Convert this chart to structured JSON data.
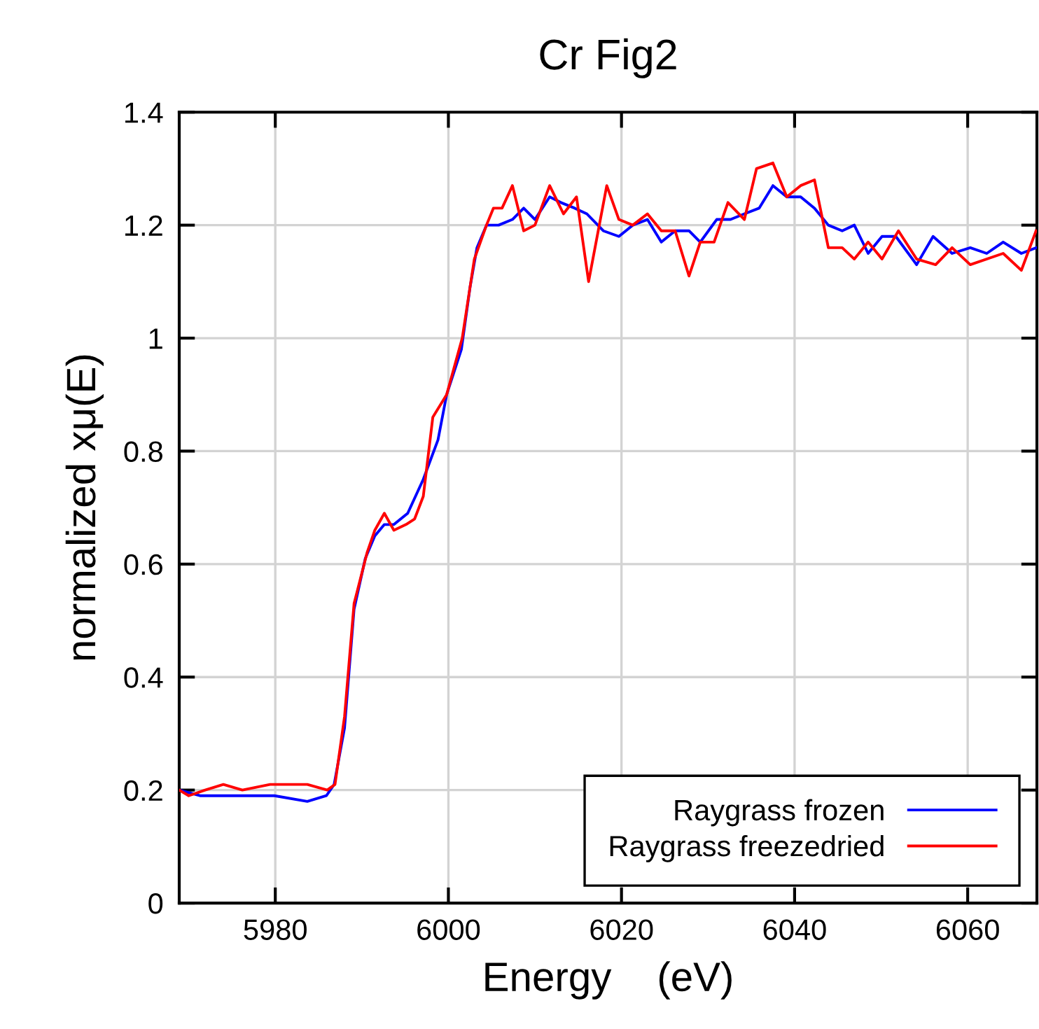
{
  "chart_data": {
    "type": "line",
    "title": "Cr Fig2",
    "xlabel": "Energy    (eV)",
    "ylabel": "normalized xμ(E)",
    "xlim": [
      5968.9,
      6068
    ],
    "xticks": [
      5980,
      6000,
      6020,
      6040,
      6060
    ],
    "ylim": [
      0,
      1.4
    ],
    "yticks": [
      0,
      {
        "value": 0.2,
        "label": "0.2"
      },
      {
        "value": 0.4,
        "label": "0.4"
      },
      {
        "value": 0.6,
        "label": "0.6"
      },
      {
        "value": 0.8,
        "label": "0.8"
      },
      1,
      {
        "value": 1.2,
        "label": "1.2"
      },
      {
        "value": 1.4,
        "label": "1.4"
      }
    ],
    "grid": true,
    "legend": "bottom right",
    "line_style": "solid",
    "series": [
      {
        "name": "Raygrass frozen",
        "color": "#0000ff",
        "x": [
          5968.9,
          5971.3,
          5974.0,
          5977.3,
          5979.9,
          5983.7,
          5985.9,
          5986.8,
          5988.0,
          5989.1,
          5990.4,
          5991.5,
          5992.6,
          5993.7,
          5995.3,
          5997.1,
          5998.8,
          5999.8,
          6001.5,
          6002.5,
          6003.3,
          6004.4,
          6005.8,
          6007.4,
          6008.7,
          6010.0,
          6011.7,
          6013.0,
          6014.6,
          6016.0,
          6017.9,
          6019.7,
          6021.3,
          6023.0,
          6024.6,
          6026.2,
          6027.8,
          6029.1,
          6031.0,
          6032.6,
          6034.2,
          6035.9,
          6037.5,
          6039.1,
          6040.7,
          6042.3,
          6043.9,
          6045.5,
          6046.9,
          6048.5,
          6050.1,
          6051.7,
          6054.1,
          6056.0,
          6058.2,
          6060.3,
          6062.2,
          6064.1,
          6066.2,
          6067.9
        ],
        "values": [
          0.2,
          0.19,
          0.19,
          0.19,
          0.19,
          0.18,
          0.19,
          0.21,
          0.31,
          0.52,
          0.61,
          0.65,
          0.67,
          0.67,
          0.69,
          0.75,
          0.82,
          0.9,
          0.98,
          1.09,
          1.16,
          1.2,
          1.2,
          1.21,
          1.23,
          1.21,
          1.25,
          1.24,
          1.23,
          1.22,
          1.19,
          1.18,
          1.2,
          1.21,
          1.17,
          1.19,
          1.19,
          1.17,
          1.21,
          1.21,
          1.22,
          1.23,
          1.27,
          1.25,
          1.25,
          1.23,
          1.2,
          1.19,
          1.2,
          1.15,
          1.18,
          1.18,
          1.13,
          1.18,
          1.15,
          1.16,
          1.15,
          1.17,
          1.15,
          1.16
        ]
      },
      {
        "name": "Raygrass freezedried",
        "color": "#ff0000",
        "x": [
          5968.9,
          5970.0,
          5971.9,
          5974.0,
          5976.2,
          5979.4,
          5982.0,
          5983.7,
          5986.0,
          5986.9,
          5988.0,
          5989.1,
          5990.6,
          5991.5,
          5992.6,
          5993.7,
          5995.1,
          5996.1,
          5997.1,
          5998.2,
          5999.8,
          6001.6,
          6003.0,
          6004.4,
          6005.2,
          6006.2,
          6007.4,
          6008.7,
          6010.0,
          6011.7,
          6013.3,
          6014.8,
          6016.2,
          6018.3,
          6019.7,
          6021.3,
          6023.0,
          6024.6,
          6026.2,
          6027.8,
          6029.1,
          6030.7,
          6032.3,
          6034.2,
          6035.6,
          6037.5,
          6039.1,
          6040.7,
          6042.3,
          6043.9,
          6045.5,
          6046.9,
          6048.5,
          6050.1,
          6052.0,
          6054.1,
          6056.3,
          6058.2,
          6060.3,
          6064.1,
          6066.2,
          6067.9
        ],
        "values": [
          0.2,
          0.19,
          0.2,
          0.21,
          0.2,
          0.21,
          0.21,
          0.21,
          0.2,
          0.21,
          0.33,
          0.53,
          0.62,
          0.66,
          0.69,
          0.66,
          0.67,
          0.68,
          0.72,
          0.86,
          0.9,
          1.0,
          1.14,
          1.2,
          1.23,
          1.23,
          1.27,
          1.19,
          1.2,
          1.27,
          1.22,
          1.25,
          1.1,
          1.27,
          1.21,
          1.2,
          1.22,
          1.19,
          1.19,
          1.11,
          1.17,
          1.17,
          1.24,
          1.21,
          1.3,
          1.31,
          1.25,
          1.27,
          1.28,
          1.16,
          1.16,
          1.14,
          1.17,
          1.14,
          1.19,
          1.14,
          1.13,
          1.16,
          1.13,
          1.15,
          1.12,
          1.19
        ]
      }
    ]
  }
}
